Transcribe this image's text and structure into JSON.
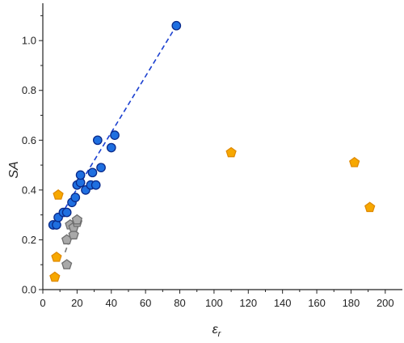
{
  "chart_data": {
    "type": "scatter",
    "xlabel": "ε",
    "xlabel_sub": "r",
    "ylabel": "SA",
    "xlim": [
      0,
      210
    ],
    "ylim": [
      0.0,
      1.15
    ],
    "x_ticks": [
      0,
      20,
      40,
      60,
      80,
      100,
      120,
      140,
      160,
      180,
      200
    ],
    "y_ticks": [
      0.0,
      0.2,
      0.4,
      0.6,
      0.8,
      1.0
    ],
    "y_tick_labels": [
      "0.0",
      "0.2",
      "0.4",
      "0.6",
      "0.8",
      "1.0"
    ],
    "grid": false,
    "series": [
      {
        "marker": "circle",
        "fill": "#1f6fe0",
        "stroke": "#0a2a8a",
        "points": [
          [
            6,
            0.26
          ],
          [
            8,
            0.26
          ],
          [
            9,
            0.29
          ],
          [
            12,
            0.31
          ],
          [
            14,
            0.31
          ],
          [
            17,
            0.35
          ],
          [
            19,
            0.37
          ],
          [
            20,
            0.42
          ],
          [
            22,
            0.43
          ],
          [
            22,
            0.46
          ],
          [
            25,
            0.4
          ],
          [
            28,
            0.42
          ],
          [
            29,
            0.47
          ],
          [
            31,
            0.42
          ],
          [
            32,
            0.6
          ],
          [
            34,
            0.49
          ],
          [
            40,
            0.57
          ],
          [
            42,
            0.62
          ],
          [
            78,
            1.06
          ]
        ],
        "fit_line": {
          "x": [
            8,
            78
          ],
          "y": [
            0.27,
            1.06
          ],
          "color": "#1a3fd0",
          "dash": true
        }
      },
      {
        "marker": "pentagon",
        "fill": "#a9a9a9",
        "stroke": "#6e6e6e",
        "points": [
          [
            14,
            0.1
          ],
          [
            14,
            0.2
          ],
          [
            16,
            0.26
          ],
          [
            18,
            0.22
          ],
          [
            18,
            0.25
          ],
          [
            20,
            0.27
          ],
          [
            20,
            0.28
          ]
        ],
        "fit_line": {
          "x": [
            13,
            20
          ],
          "y": [
            0.15,
            0.28
          ],
          "color": "#7a7a7a",
          "dash": true
        }
      },
      {
        "marker": "pentagon",
        "fill": "#f7a800",
        "stroke": "#e08a00",
        "points": [
          [
            7,
            0.05
          ],
          [
            8,
            0.13
          ],
          [
            9,
            0.38
          ],
          [
            110,
            0.55
          ],
          [
            182,
            0.51
          ],
          [
            191,
            0.33
          ]
        ]
      }
    ]
  }
}
